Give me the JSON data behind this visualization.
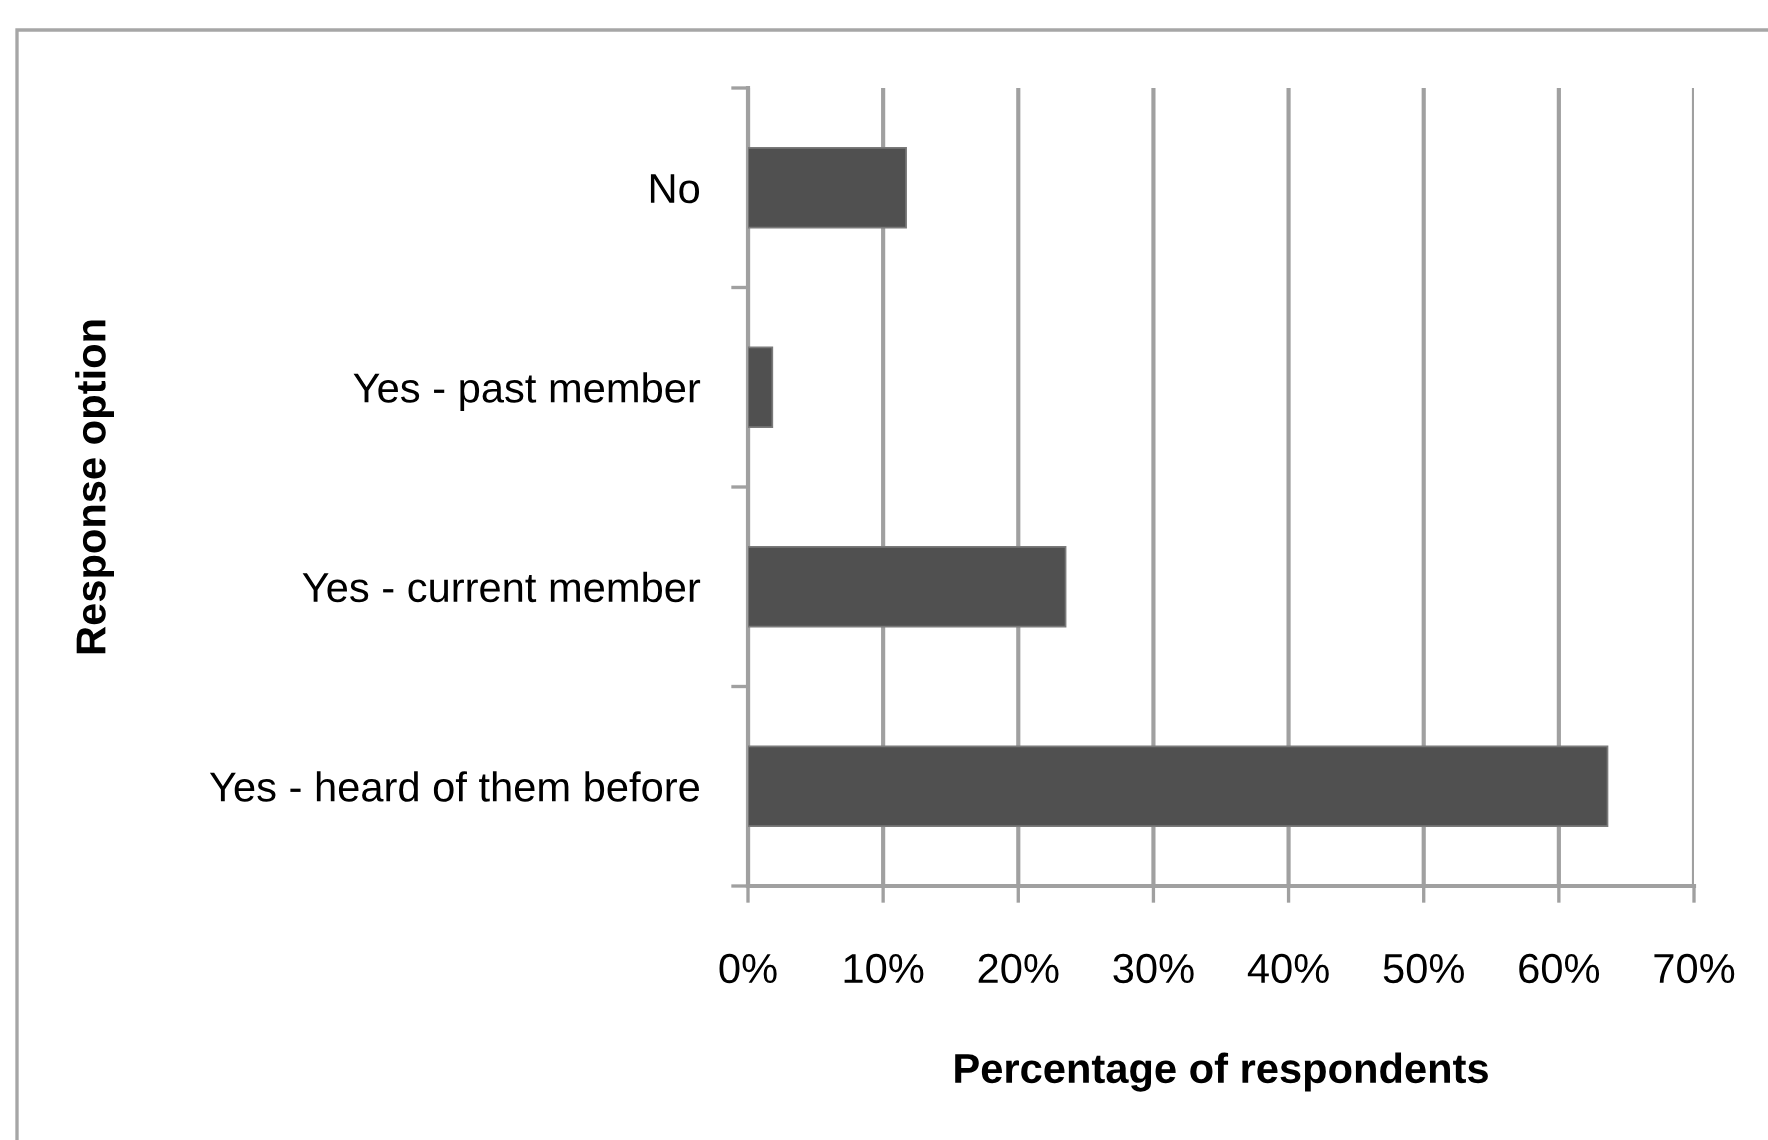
{
  "chart_data": {
    "type": "bar",
    "orientation": "horizontal",
    "xlabel": "Percentage of respondents",
    "ylabel": "Response option",
    "categories": [
      "No",
      "Yes - past member",
      "Yes - current member",
      "Yes - heard of them before"
    ],
    "values": [
      11.7,
      1.8,
      23.5,
      63.6
    ],
    "color": "#505050",
    "xlim": [
      0,
      70
    ],
    "xticks": [
      {
        "value": 0,
        "label": "0%"
      },
      {
        "value": 10,
        "label": "10%"
      },
      {
        "value": 20,
        "label": "20%"
      },
      {
        "value": 30,
        "label": "30%"
      },
      {
        "value": 40,
        "label": "40%"
      },
      {
        "value": 50,
        "label": "50%"
      },
      {
        "value": 60,
        "label": "60%"
      },
      {
        "value": 70,
        "label": "70%"
      }
    ],
    "grid": "x"
  }
}
